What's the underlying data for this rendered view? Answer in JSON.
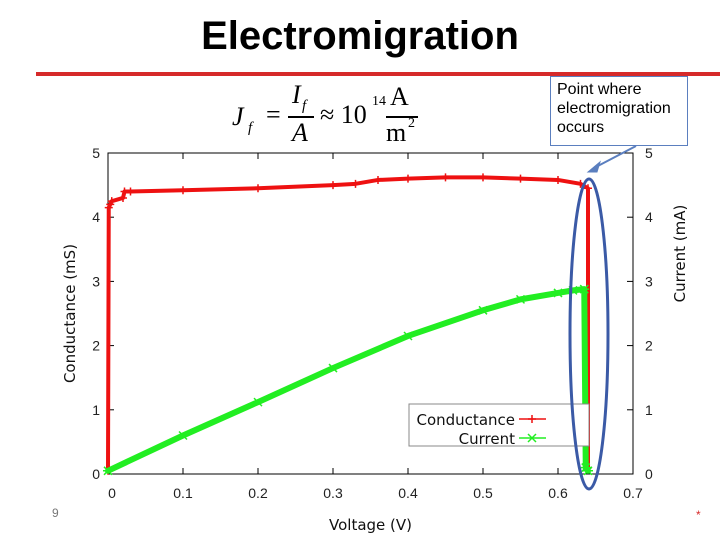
{
  "slide": {
    "title": "Electromigration",
    "number": "9",
    "corner_mark": "*"
  },
  "equation": {
    "lhs": "J",
    "lhs_sub": "f",
    "eq": "=",
    "num": "I",
    "num_sub": "f",
    "den": "A",
    "approx": "≈ 10",
    "exp": "14",
    "unit_num": "A",
    "unit_den": "m",
    "unit_den_exp": "2"
  },
  "callout": {
    "text": "Point where electromigration occurs"
  },
  "colors": {
    "conductance": "#ee1111",
    "current": "#22ee22",
    "highlight": "#3b5aa6",
    "title_rule": "#d62a2a"
  },
  "chart_data": {
    "type": "line",
    "xlabel": "Voltage (V)",
    "ylabel": "Conductance (mS)",
    "y2label": "Current (mA)",
    "xlim": [
      0,
      0.7
    ],
    "ylim": [
      0,
      5
    ],
    "y2lim": [
      0,
      5
    ],
    "xticks": [
      "0",
      "0.1",
      "0.2",
      "0.3",
      "0.4",
      "0.5",
      "0.6",
      "0.7"
    ],
    "yticks": [
      "0",
      "1",
      "2",
      "3",
      "4",
      "5"
    ],
    "y2ticks": [
      "0",
      "1",
      "2",
      "3",
      "4",
      "5"
    ],
    "legend_position": "bottom-right",
    "series": [
      {
        "name": "Conductance",
        "axis": "left",
        "x": [
          0,
          0.001,
          0.003,
          0.005,
          0.02,
          0.022,
          0.03,
          0.1,
          0.2,
          0.3,
          0.33,
          0.36,
          0.4,
          0.45,
          0.5,
          0.55,
          0.6,
          0.63,
          0.64,
          0.64
        ],
        "y": [
          0.05,
          4.15,
          4.2,
          4.25,
          4.3,
          4.4,
          4.4,
          4.42,
          4.45,
          4.5,
          4.52,
          4.58,
          4.6,
          4.62,
          4.62,
          4.6,
          4.58,
          4.52,
          4.45,
          0.1
        ]
      },
      {
        "name": "Current",
        "axis": "right",
        "x": [
          0,
          0.1,
          0.2,
          0.3,
          0.4,
          0.5,
          0.55,
          0.6,
          0.62,
          0.635,
          0.637,
          0.64
        ],
        "y": [
          0.05,
          0.6,
          1.12,
          1.65,
          2.15,
          2.55,
          2.72,
          2.82,
          2.86,
          2.88,
          0.1,
          0.05
        ]
      }
    ]
  }
}
